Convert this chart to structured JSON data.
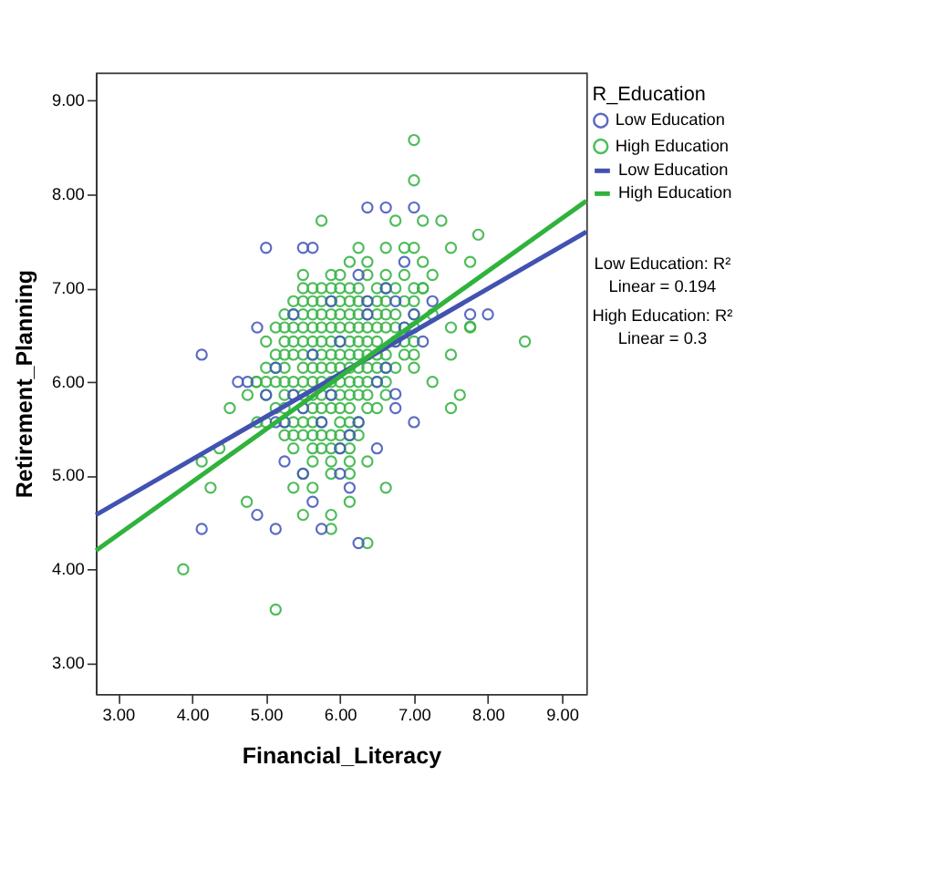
{
  "chart_data": {
    "type": "scatter",
    "xlabel": "Financial_Literacy",
    "ylabel": "Retirement_Planning",
    "legend_title": "R_Education",
    "legend": "right",
    "grid": false,
    "xlim": [
      2.7,
      9.33
    ],
    "ylim": [
      2.67,
      9.3
    ],
    "xticks": [
      {
        "value": 3,
        "label": "3.00"
      },
      {
        "value": 4,
        "label": "4.00"
      },
      {
        "value": 5,
        "label": "5.00"
      },
      {
        "value": 6,
        "label": "6.00"
      },
      {
        "value": 7,
        "label": "7.00"
      },
      {
        "value": 8,
        "label": "8.00"
      },
      {
        "value": 9,
        "label": "9.00"
      }
    ],
    "yticks": [
      {
        "value": 3,
        "label": "3.00"
      },
      {
        "value": 4,
        "label": "4.00"
      },
      {
        "value": 5,
        "label": "5.00"
      },
      {
        "value": 6,
        "label": "6.00"
      },
      {
        "value": 7,
        "label": "7.00"
      },
      {
        "value": 8,
        "label": "8.00"
      },
      {
        "value": 9,
        "label": "9.00"
      }
    ],
    "annotations": [
      "Low Education: R² Linear = 0.194",
      "High Education: R² Linear = 0.3"
    ],
    "series": [
      {
        "name": "Low Education",
        "type": "scatter",
        "marker": "circle",
        "color": "#4a5bbd",
        "x": [
          5.0,
          5.5,
          5.63,
          4.88,
          4.13,
          4.62,
          4.75,
          5.13,
          6.37,
          6.62,
          7.0,
          7.76,
          8.0,
          6.25,
          6.13,
          6.0,
          6.5,
          7.0,
          6.75,
          6.75,
          4.88,
          4.13,
          5.13,
          5.75,
          5.63,
          5.5,
          5.25,
          5.5,
          5.37,
          5.25,
          5.75,
          6.0,
          6.13,
          6.25,
          6.5,
          6.62,
          6.87,
          7.12,
          6.37,
          6.62,
          5.88,
          6.25,
          6.75,
          7.0,
          5.63,
          5.0,
          5.13,
          6.0,
          6.37,
          7.25,
          6.87,
          5.88,
          5.37,
          6.75
        ],
        "values": [
          7.43,
          7.43,
          7.43,
          6.58,
          6.29,
          6.0,
          6.0,
          6.15,
          7.86,
          7.86,
          7.86,
          6.72,
          6.72,
          4.28,
          4.87,
          5.02,
          5.29,
          5.57,
          5.72,
          5.87,
          4.58,
          4.43,
          4.43,
          4.43,
          4.72,
          5.02,
          5.15,
          5.72,
          5.86,
          5.57,
          5.57,
          5.29,
          5.43,
          5.57,
          6.0,
          6.15,
          6.58,
          6.43,
          6.72,
          7.0,
          6.86,
          7.14,
          6.86,
          6.72,
          6.29,
          5.86,
          5.57,
          6.43,
          6.86,
          6.86,
          7.28,
          5.86,
          6.72,
          6.43
        ]
      },
      {
        "name": "High Education",
        "type": "scatter",
        "marker": "circle",
        "color": "#3cb54a",
        "x": [
          5.5,
          5.63,
          5.75,
          5.88,
          6.0,
          6.13,
          6.25,
          6.5,
          6.62,
          6.75,
          7.0,
          7.12,
          5.37,
          5.5,
          5.63,
          5.75,
          5.88,
          6.0,
          6.13,
          6.25,
          6.37,
          6.5,
          6.62,
          6.87,
          7.0,
          5.25,
          5.37,
          5.5,
          5.63,
          5.75,
          5.88,
          6.0,
          6.13,
          6.25,
          6.37,
          6.5,
          6.62,
          6.75,
          7.0,
          7.25,
          5.13,
          5.25,
          5.37,
          5.5,
          5.63,
          5.75,
          5.88,
          6.0,
          6.13,
          6.25,
          6.37,
          6.5,
          6.62,
          6.75,
          6.87,
          7.0,
          7.5,
          7.76,
          5.0,
          5.25,
          5.37,
          5.5,
          5.63,
          5.75,
          5.88,
          6.0,
          6.13,
          6.25,
          6.37,
          6.5,
          6.75,
          6.87,
          7.0,
          8.5,
          5.13,
          5.25,
          5.37,
          5.5,
          5.63,
          5.75,
          5.88,
          6.0,
          6.13,
          6.25,
          6.37,
          6.5,
          6.62,
          6.87,
          7.0,
          7.5,
          5.0,
          5.13,
          5.25,
          5.5,
          5.63,
          5.75,
          5.88,
          6.0,
          6.13,
          6.25,
          6.37,
          6.5,
          6.62,
          6.75,
          7.0,
          4.87,
          5.0,
          5.13,
          5.25,
          5.37,
          5.5,
          5.63,
          5.75,
          5.88,
          6.0,
          6.13,
          6.25,
          6.37,
          6.5,
          6.62,
          7.25,
          4.75,
          5.0,
          5.25,
          5.37,
          5.5,
          5.63,
          5.75,
          5.88,
          6.0,
          6.13,
          6.25,
          6.37,
          6.62,
          7.62,
          4.51,
          5.13,
          5.25,
          5.5,
          5.63,
          5.75,
          5.88,
          6.0,
          6.13,
          6.37,
          6.5,
          7.5,
          4.88,
          5.0,
          5.25,
          5.37,
          5.5,
          5.63,
          5.75,
          6.0,
          6.13,
          6.25,
          5.25,
          5.37,
          5.5,
          5.63,
          5.75,
          5.88,
          6.0,
          6.13,
          6.25,
          4.37,
          5.37,
          5.63,
          5.75,
          5.88,
          6.0,
          6.13,
          4.13,
          5.63,
          5.88,
          6.13,
          6.37,
          5.5,
          5.88,
          6.13,
          4.25,
          5.37,
          5.63,
          6.62,
          4.74,
          6.13,
          5.5,
          5.88,
          5.88,
          6.37,
          3.88,
          5.13,
          7.0,
          7.0,
          5.75,
          6.75,
          7.12,
          7.37,
          7.87,
          7.5,
          6.13,
          7.76,
          6.25,
          6.62,
          6.87,
          7.0,
          7.12,
          6.37,
          6.62,
          6.87,
          7.25,
          5.5,
          5.88,
          6.0,
          6.37,
          7.12,
          7.76,
          4.87
        ],
        "values": [
          7.0,
          7.0,
          7.0,
          7.0,
          7.0,
          7.0,
          7.0,
          7.0,
          7.0,
          7.0,
          7.0,
          7.0,
          6.86,
          6.86,
          6.86,
          6.86,
          6.86,
          6.86,
          6.86,
          6.86,
          6.86,
          6.86,
          6.86,
          6.86,
          6.86,
          6.72,
          6.72,
          6.72,
          6.72,
          6.72,
          6.72,
          6.72,
          6.72,
          6.72,
          6.72,
          6.72,
          6.72,
          6.72,
          6.72,
          6.72,
          6.58,
          6.58,
          6.58,
          6.58,
          6.58,
          6.58,
          6.58,
          6.58,
          6.58,
          6.58,
          6.58,
          6.58,
          6.58,
          6.58,
          6.58,
          6.58,
          6.58,
          6.58,
          6.43,
          6.43,
          6.43,
          6.43,
          6.43,
          6.43,
          6.43,
          6.43,
          6.43,
          6.43,
          6.43,
          6.43,
          6.43,
          6.43,
          6.43,
          6.43,
          6.29,
          6.29,
          6.29,
          6.29,
          6.29,
          6.29,
          6.29,
          6.29,
          6.29,
          6.29,
          6.29,
          6.29,
          6.29,
          6.29,
          6.29,
          6.29,
          6.15,
          6.15,
          6.15,
          6.15,
          6.15,
          6.15,
          6.15,
          6.15,
          6.15,
          6.15,
          6.15,
          6.15,
          6.15,
          6.15,
          6.15,
          6.0,
          6.0,
          6.0,
          6.0,
          6.0,
          6.0,
          6.0,
          6.0,
          6.0,
          6.0,
          6.0,
          6.0,
          6.0,
          6.0,
          6.0,
          6.0,
          5.86,
          5.86,
          5.86,
          5.86,
          5.86,
          5.86,
          5.86,
          5.86,
          5.86,
          5.86,
          5.86,
          5.86,
          5.86,
          5.86,
          5.72,
          5.72,
          5.72,
          5.72,
          5.72,
          5.72,
          5.72,
          5.72,
          5.72,
          5.72,
          5.72,
          5.72,
          5.57,
          5.57,
          5.57,
          5.57,
          5.57,
          5.57,
          5.57,
          5.57,
          5.57,
          5.57,
          5.43,
          5.43,
          5.43,
          5.43,
          5.43,
          5.43,
          5.43,
          5.43,
          5.43,
          5.29,
          5.29,
          5.29,
          5.29,
          5.29,
          5.29,
          5.29,
          5.15,
          5.15,
          5.15,
          5.15,
          5.15,
          5.02,
          5.02,
          5.02,
          4.87,
          4.87,
          4.87,
          4.87,
          4.72,
          4.72,
          4.58,
          4.58,
          4.43,
          4.28,
          4.0,
          3.57,
          8.58,
          8.15,
          7.72,
          7.72,
          7.72,
          7.72,
          7.57,
          7.43,
          7.28,
          7.28,
          7.43,
          7.43,
          7.43,
          7.43,
          7.28,
          7.28,
          7.14,
          7.14,
          7.14,
          7.14,
          7.14,
          7.14,
          7.14,
          7.0,
          6.59,
          6.0
        ]
      },
      {
        "name": "Low Education",
        "type": "line",
        "color": "#4252b0",
        "x": [
          2.7,
          9.33
        ],
        "values": [
          4.58,
          7.6
        ]
      },
      {
        "name": "High Education",
        "type": "line",
        "color": "#30b33c",
        "x": [
          2.7,
          9.33
        ],
        "values": [
          4.2,
          7.93
        ]
      }
    ]
  }
}
